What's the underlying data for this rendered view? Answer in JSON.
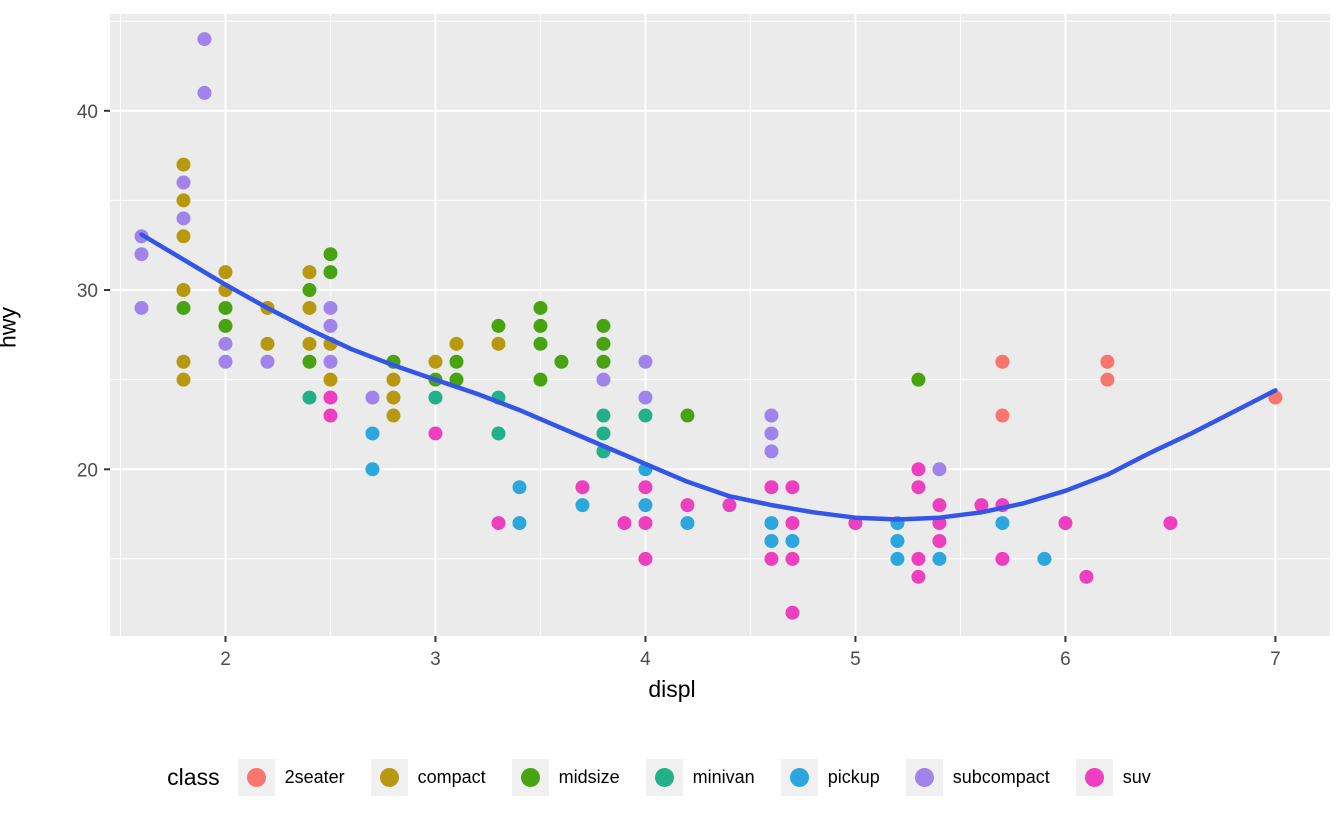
{
  "axes": {
    "x": {
      "label": "displ",
      "tick_labels": [
        "2",
        "3",
        "4",
        "5",
        "6",
        "7"
      ]
    },
    "y": {
      "label": "hwy",
      "tick_labels": [
        "20",
        "30",
        "40"
      ]
    }
  },
  "legend": {
    "title": "class",
    "items": [
      {
        "label": "2seater",
        "color": "#F8766D"
      },
      {
        "label": "compact",
        "color": "#B8980F"
      },
      {
        "label": "midsize",
        "color": "#47A410"
      },
      {
        "label": "minivan",
        "color": "#21B087"
      },
      {
        "label": "pickup",
        "color": "#2BA7DE"
      },
      {
        "label": "subcompact",
        "color": "#A183EC"
      },
      {
        "label": "suv",
        "color": "#EE3FC0"
      }
    ]
  },
  "styles": {
    "panel_bg": "#EBEBEB",
    "grid_color": "#FFFFFF",
    "tick_label_color": "#4D4D4D",
    "tick_mark_color": "#333333",
    "smooth_line_color": "#3355E8",
    "legend_key_bg": "#F0F0F0"
  },
  "chart_data": {
    "type": "scatter",
    "title": "",
    "xlabel": "displ",
    "ylabel": "hwy",
    "xlim": [
      1.45,
      7.26
    ],
    "ylim": [
      10.7,
      45.4
    ],
    "x_major_ticks": [
      2,
      3,
      4,
      5,
      6,
      7
    ],
    "x_minor_ticks": [
      1.5,
      2.5,
      3.5,
      4.5,
      5.5,
      6.5
    ],
    "y_major_ticks": [
      20,
      30,
      40
    ],
    "y_minor_ticks": [
      15,
      25,
      35,
      45
    ],
    "grid": true,
    "legend_position": "bottom",
    "point_radius": 7,
    "series": [
      {
        "name": "2seater",
        "color": "#F8766D",
        "points": [
          [
            5.7,
            26
          ],
          [
            5.7,
            23
          ],
          [
            6.2,
            26
          ],
          [
            6.2,
            25
          ],
          [
            7.0,
            24
          ]
        ]
      },
      {
        "name": "compact",
        "color": "#B8980F",
        "points": [
          [
            1.8,
            37
          ],
          [
            1.8,
            35
          ],
          [
            1.8,
            33
          ],
          [
            1.8,
            30
          ],
          [
            1.8,
            26
          ],
          [
            1.8,
            25
          ],
          [
            2.0,
            31
          ],
          [
            2.0,
            30
          ],
          [
            2.2,
            29
          ],
          [
            2.2,
            27
          ],
          [
            2.4,
            31
          ],
          [
            2.4,
            29
          ],
          [
            2.4,
            27
          ],
          [
            2.5,
            27
          ],
          [
            2.5,
            25
          ],
          [
            2.8,
            25
          ],
          [
            2.8,
            24
          ],
          [
            2.8,
            23
          ],
          [
            3.0,
            26
          ],
          [
            3.1,
            27
          ],
          [
            3.3,
            27
          ]
        ]
      },
      {
        "name": "midsize",
        "color": "#47A410",
        "points": [
          [
            1.8,
            29
          ],
          [
            2.0,
            29
          ],
          [
            2.0,
            28
          ],
          [
            2.4,
            30
          ],
          [
            2.4,
            26
          ],
          [
            2.5,
            32
          ],
          [
            2.5,
            31
          ],
          [
            2.8,
            26
          ],
          [
            3.0,
            25
          ],
          [
            3.1,
            26
          ],
          [
            3.1,
            25
          ],
          [
            3.3,
            28
          ],
          [
            3.5,
            29
          ],
          [
            3.5,
            28
          ],
          [
            3.5,
            27
          ],
          [
            3.5,
            25
          ],
          [
            3.6,
            26
          ],
          [
            3.8,
            28
          ],
          [
            3.8,
            27
          ],
          [
            3.8,
            26
          ],
          [
            4.2,
            23
          ],
          [
            5.3,
            25
          ]
        ]
      },
      {
        "name": "minivan",
        "color": "#21B087",
        "points": [
          [
            2.4,
            24
          ],
          [
            3.0,
            24
          ],
          [
            3.3,
            24
          ],
          [
            3.3,
            22
          ],
          [
            3.8,
            23
          ],
          [
            3.8,
            22
          ],
          [
            3.8,
            21
          ],
          [
            4.0,
            23
          ]
        ]
      },
      {
        "name": "pickup",
        "color": "#2BA7DE",
        "points": [
          [
            2.7,
            22
          ],
          [
            2.7,
            20
          ],
          [
            3.4,
            19
          ],
          [
            3.4,
            17
          ],
          [
            3.7,
            18
          ],
          [
            4.0,
            20
          ],
          [
            4.0,
            18
          ],
          [
            4.2,
            17
          ],
          [
            4.6,
            17
          ],
          [
            4.6,
            16
          ],
          [
            4.7,
            16
          ],
          [
            5.2,
            17
          ],
          [
            5.2,
            16
          ],
          [
            5.2,
            15
          ],
          [
            5.4,
            15
          ],
          [
            5.7,
            17
          ],
          [
            5.9,
            15
          ]
        ]
      },
      {
        "name": "subcompact",
        "color": "#A183EC",
        "points": [
          [
            1.6,
            33
          ],
          [
            1.6,
            32
          ],
          [
            1.6,
            29
          ],
          [
            1.8,
            36
          ],
          [
            1.8,
            34
          ],
          [
            1.9,
            44
          ],
          [
            1.9,
            41
          ],
          [
            2.0,
            27
          ],
          [
            2.0,
            26
          ],
          [
            2.2,
            26
          ],
          [
            2.5,
            29
          ],
          [
            2.5,
            28
          ],
          [
            2.5,
            26
          ],
          [
            2.7,
            24
          ],
          [
            3.8,
            25
          ],
          [
            4.0,
            26
          ],
          [
            4.0,
            24
          ],
          [
            4.6,
            23
          ],
          [
            4.6,
            22
          ],
          [
            4.6,
            21
          ],
          [
            5.4,
            20
          ]
        ]
      },
      {
        "name": "suv",
        "color": "#EE3FC0",
        "points": [
          [
            2.5,
            24
          ],
          [
            2.5,
            23
          ],
          [
            3.0,
            22
          ],
          [
            3.3,
            17
          ],
          [
            3.7,
            19
          ],
          [
            3.9,
            17
          ],
          [
            4.0,
            19
          ],
          [
            4.0,
            17
          ],
          [
            4.0,
            15
          ],
          [
            4.2,
            18
          ],
          [
            4.4,
            18
          ],
          [
            4.6,
            19
          ],
          [
            4.6,
            15
          ],
          [
            4.7,
            19
          ],
          [
            4.7,
            17
          ],
          [
            4.7,
            15
          ],
          [
            4.7,
            12
          ],
          [
            5.0,
            17
          ],
          [
            5.3,
            20
          ],
          [
            5.3,
            19
          ],
          [
            5.3,
            15
          ],
          [
            5.3,
            14
          ],
          [
            5.4,
            18
          ],
          [
            5.4,
            17
          ],
          [
            5.4,
            16
          ],
          [
            5.6,
            18
          ],
          [
            5.7,
            18
          ],
          [
            5.7,
            15
          ],
          [
            6.0,
            17
          ],
          [
            6.1,
            14
          ],
          [
            6.5,
            17
          ]
        ]
      }
    ],
    "smooth_line": {
      "name": "loess-smooth",
      "color": "#3355E8",
      "width": 4.5,
      "points": [
        [
          1.6,
          33.1
        ],
        [
          1.8,
          31.7
        ],
        [
          2.0,
          30.3
        ],
        [
          2.2,
          29.0
        ],
        [
          2.4,
          27.8
        ],
        [
          2.6,
          26.7
        ],
        [
          2.8,
          25.8
        ],
        [
          3.0,
          25.0
        ],
        [
          3.2,
          24.2
        ],
        [
          3.4,
          23.3
        ],
        [
          3.6,
          22.3
        ],
        [
          3.8,
          21.3
        ],
        [
          4.0,
          20.3
        ],
        [
          4.2,
          19.3
        ],
        [
          4.4,
          18.5
        ],
        [
          4.6,
          18.0
        ],
        [
          4.8,
          17.6
        ],
        [
          5.0,
          17.3
        ],
        [
          5.2,
          17.2
        ],
        [
          5.4,
          17.3
        ],
        [
          5.6,
          17.6
        ],
        [
          5.8,
          18.1
        ],
        [
          6.0,
          18.8
        ],
        [
          6.2,
          19.7
        ],
        [
          6.4,
          20.9
        ],
        [
          6.6,
          22.0
        ],
        [
          6.8,
          23.2
        ],
        [
          7.0,
          24.4
        ]
      ]
    }
  }
}
